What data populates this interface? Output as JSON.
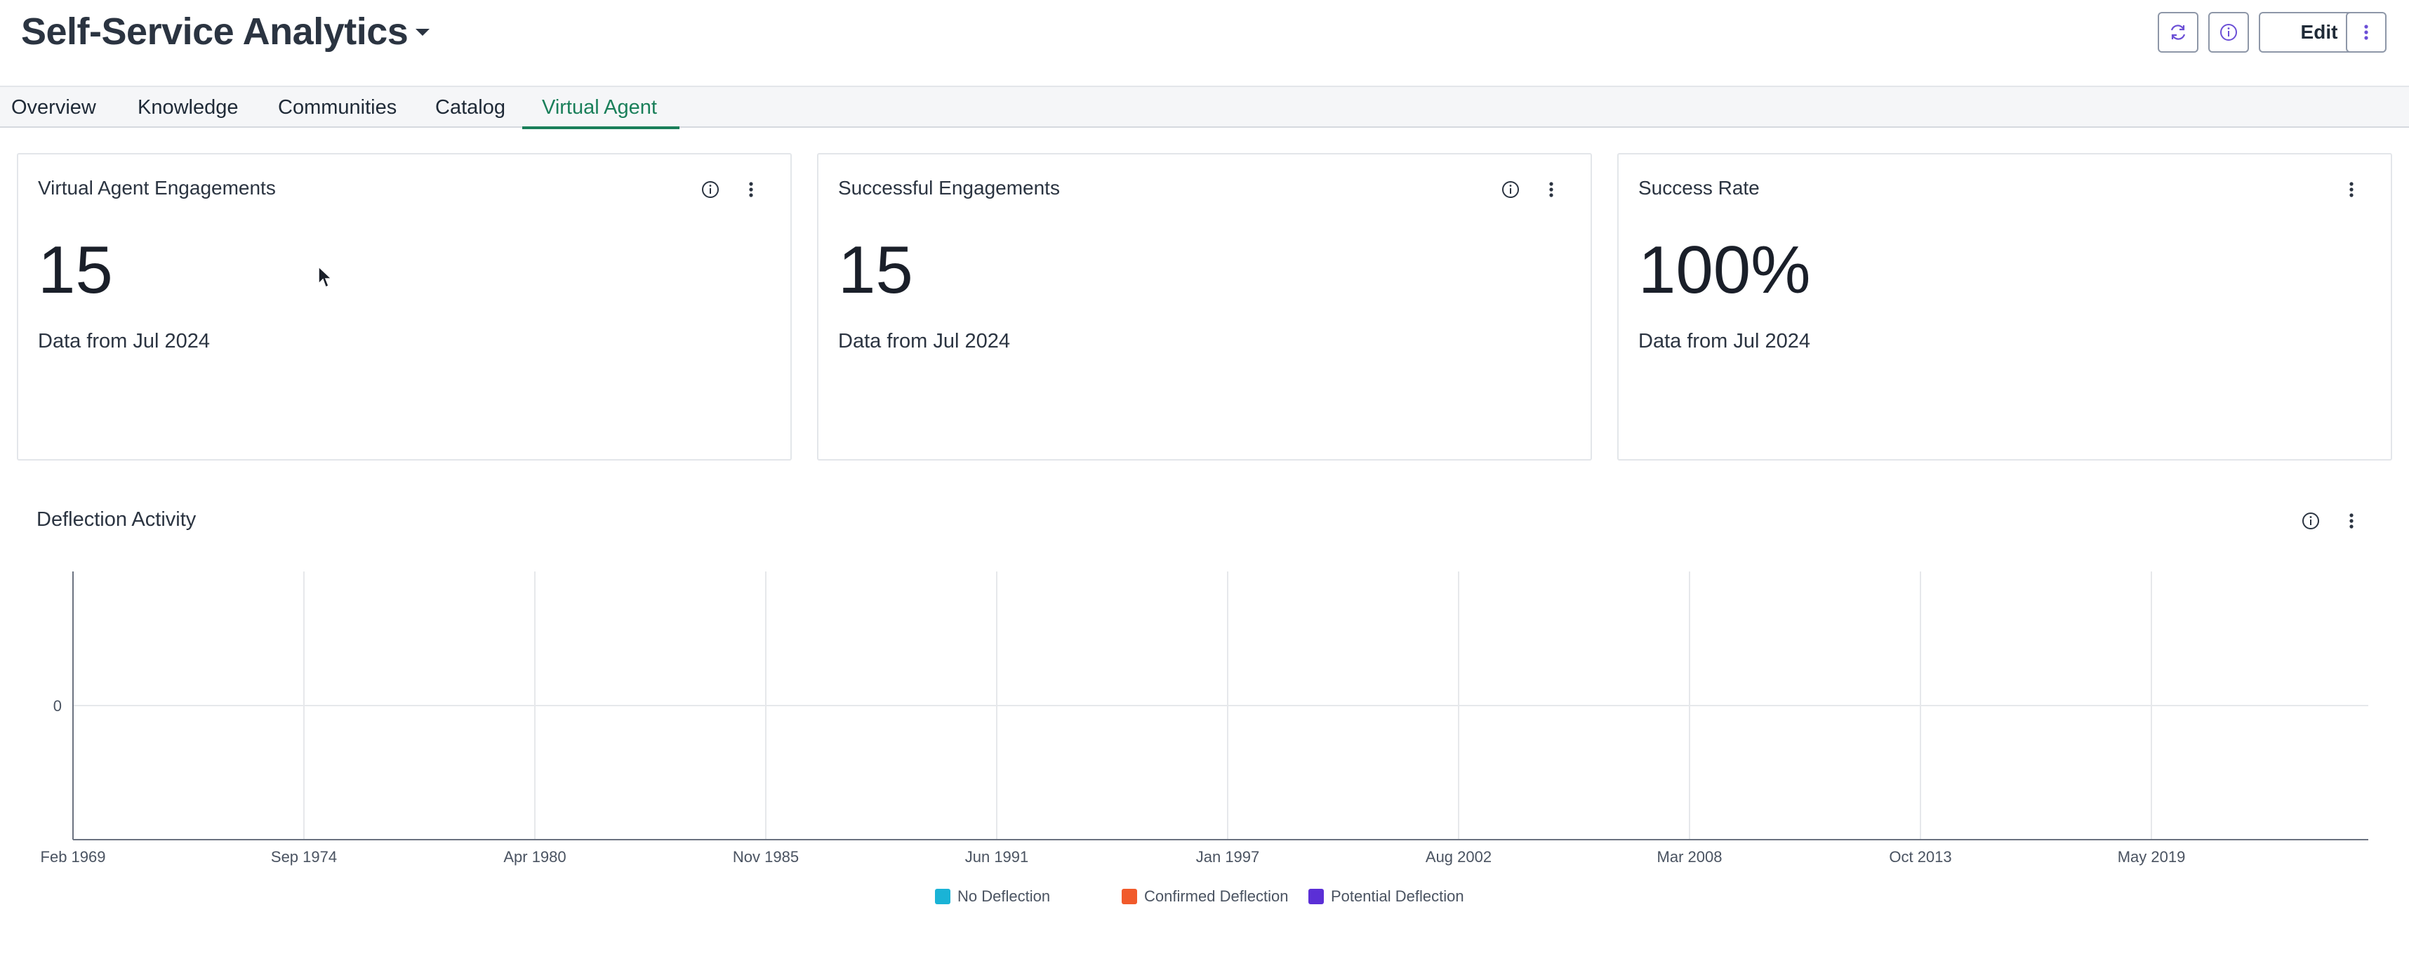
{
  "header": {
    "title": "Self-Service Analytics",
    "edit_label": "Edit"
  },
  "tabs": [
    {
      "label": "Overview",
      "active": false
    },
    {
      "label": "Knowledge",
      "active": false
    },
    {
      "label": "Communities",
      "active": false
    },
    {
      "label": "Catalog",
      "active": false
    },
    {
      "label": "Virtual Agent",
      "active": true
    }
  ],
  "cards": [
    {
      "title": "Virtual Agent Engagements",
      "value": "15",
      "subtitle": "Data from Jul 2024",
      "has_info": true
    },
    {
      "title": "Successful Engagements",
      "value": "15",
      "subtitle": "Data from Jul 2024",
      "has_info": true
    },
    {
      "title": "Success Rate",
      "value": "100%",
      "subtitle": "Data from Jul 2024",
      "has_info": false
    }
  ],
  "panel": {
    "title": "Deflection Activity"
  },
  "chart_data": {
    "type": "line",
    "title": "Deflection Activity",
    "x_tick_labels": [
      "Feb 1969",
      "Sep 1974",
      "Apr 1980",
      "Nov 1985",
      "Jun 1991",
      "Jan 1997",
      "Aug 2002",
      "Mar 2008",
      "Oct 2013",
      "May 2019"
    ],
    "y_tick_labels": [
      "0"
    ],
    "series": [
      {
        "name": "No Deflection",
        "color": "#1ab3d6",
        "values": []
      },
      {
        "name": "Confirmed Deflection",
        "color": "#f15a2b",
        "values": []
      },
      {
        "name": "Potential Deflection",
        "color": "#5b2fd6",
        "values": []
      }
    ],
    "grid": true,
    "legend": "bottom-center"
  },
  "colors": {
    "accent": "#1a7f5a",
    "icon": "#6b4fd6"
  }
}
